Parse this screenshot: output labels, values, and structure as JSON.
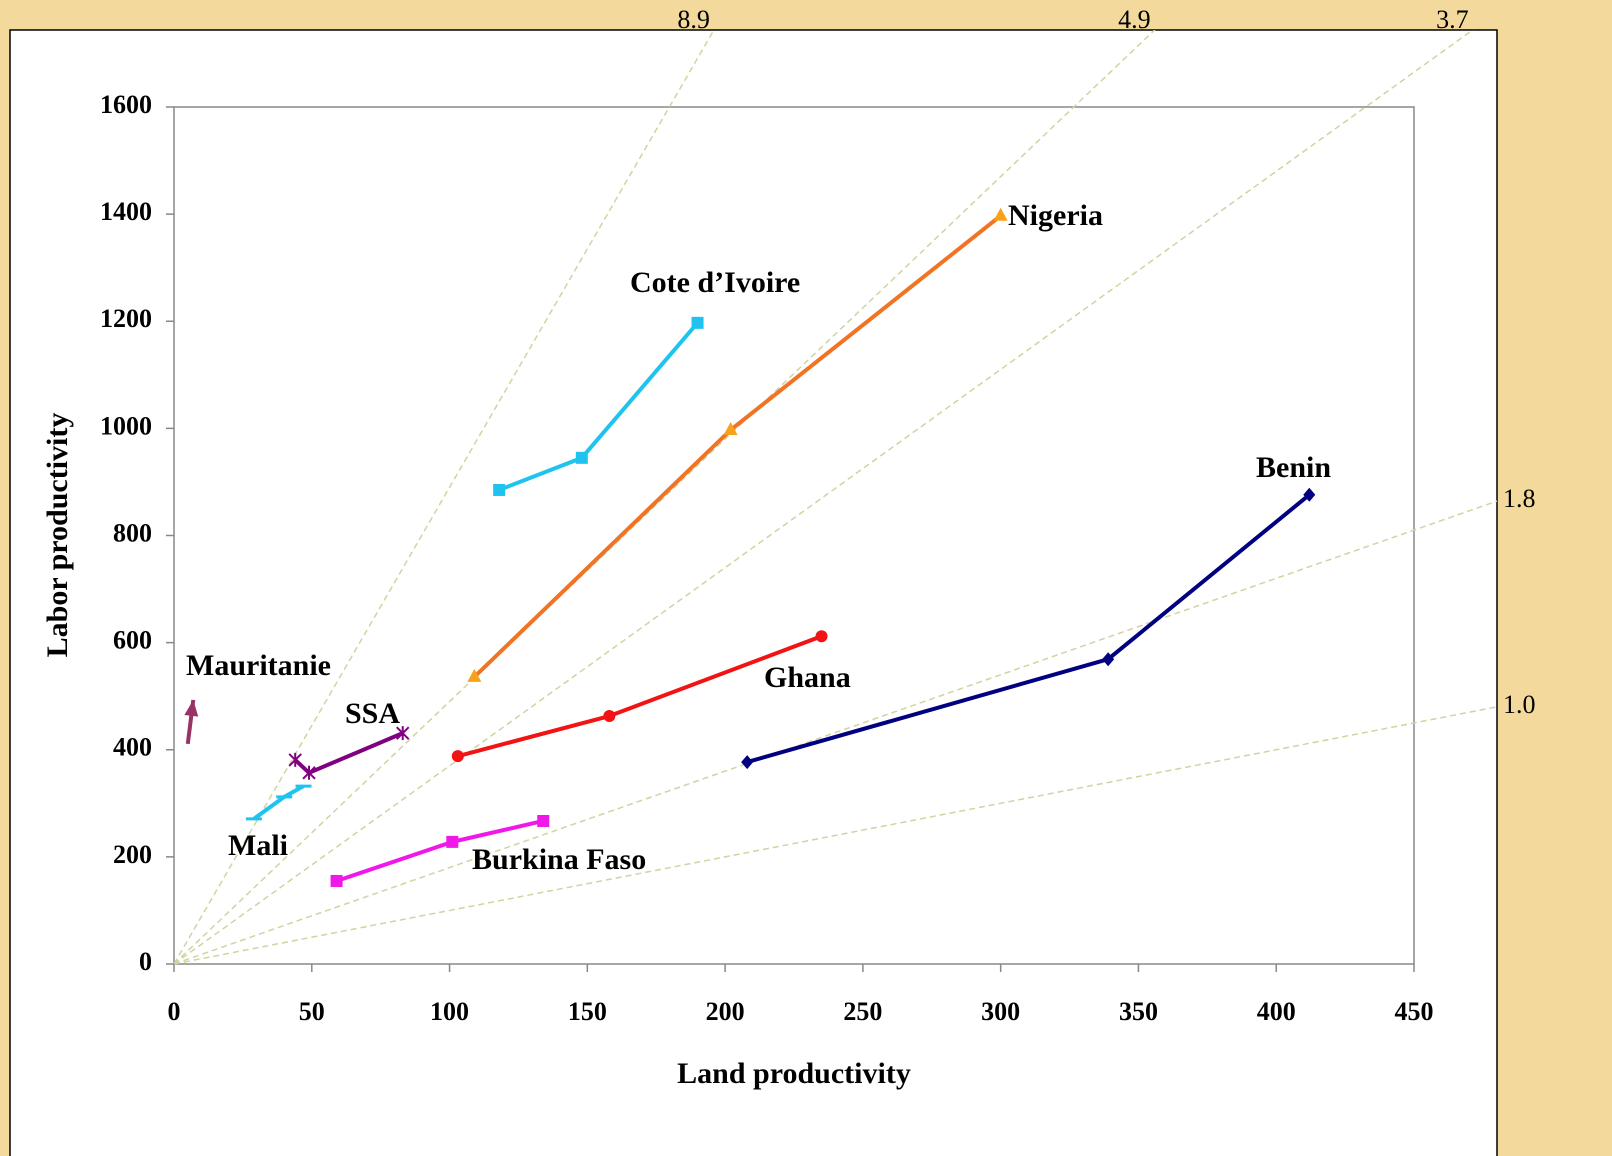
{
  "chart_data": {
    "type": "line",
    "x_label": "Land productivity",
    "y_label": "Labor productivity",
    "xlim": [
      0,
      450
    ],
    "xticks": [
      0,
      50,
      100,
      150,
      200,
      250,
      300,
      350,
      400,
      450
    ],
    "ylim": [
      0,
      1600
    ],
    "yticks": [
      0,
      200,
      400,
      600,
      800,
      1000,
      1200,
      1400,
      1600
    ],
    "reference_slopes": [
      8.9,
      4.9,
      3.7,
      1.8,
      {
        "value": 1,
        "label": "1.0"
      }
    ],
    "series": [
      {
        "name": "Cote d’Ivoire",
        "color": "#1ec4ef",
        "marker": "square",
        "x": [
          118,
          148,
          190
        ],
        "values": [
          885,
          945,
          1197
        ]
      },
      {
        "name": "Nigeria",
        "color": "#f07424",
        "marker_color": "#f7a21b",
        "marker": "triangle",
        "x": [
          109,
          202,
          300
        ],
        "values": [
          536,
          997,
          1397
        ]
      },
      {
        "name": "Ghana",
        "color": "#f01414",
        "marker": "circle",
        "x": [
          103,
          158,
          235
        ],
        "values": [
          388,
          463,
          612
        ]
      },
      {
        "name": "Benin",
        "color": "#000080",
        "marker": "diamond",
        "x": [
          208,
          339,
          412
        ],
        "values": [
          377,
          569,
          876
        ]
      },
      {
        "name": "Burkina Faso",
        "color": "#f018e8",
        "marker": "square",
        "x": [
          59,
          101,
          134
        ],
        "values": [
          155,
          228,
          267
        ]
      },
      {
        "name": "SSA",
        "color": "#800080",
        "label_color": "#f04a1c",
        "marker": "star",
        "x": [
          44,
          49,
          83
        ],
        "values": [
          381,
          357,
          431
        ]
      },
      {
        "name": "Mali",
        "color": "#1ec4ef",
        "marker": "dash",
        "x": [
          29,
          40,
          47
        ],
        "values": [
          271,
          312,
          332
        ]
      },
      {
        "name": "Mauritanie",
        "color": "#993366",
        "marker": "arrow",
        "x": [
          5,
          7
        ],
        "values": [
          411,
          493
        ]
      }
    ]
  }
}
